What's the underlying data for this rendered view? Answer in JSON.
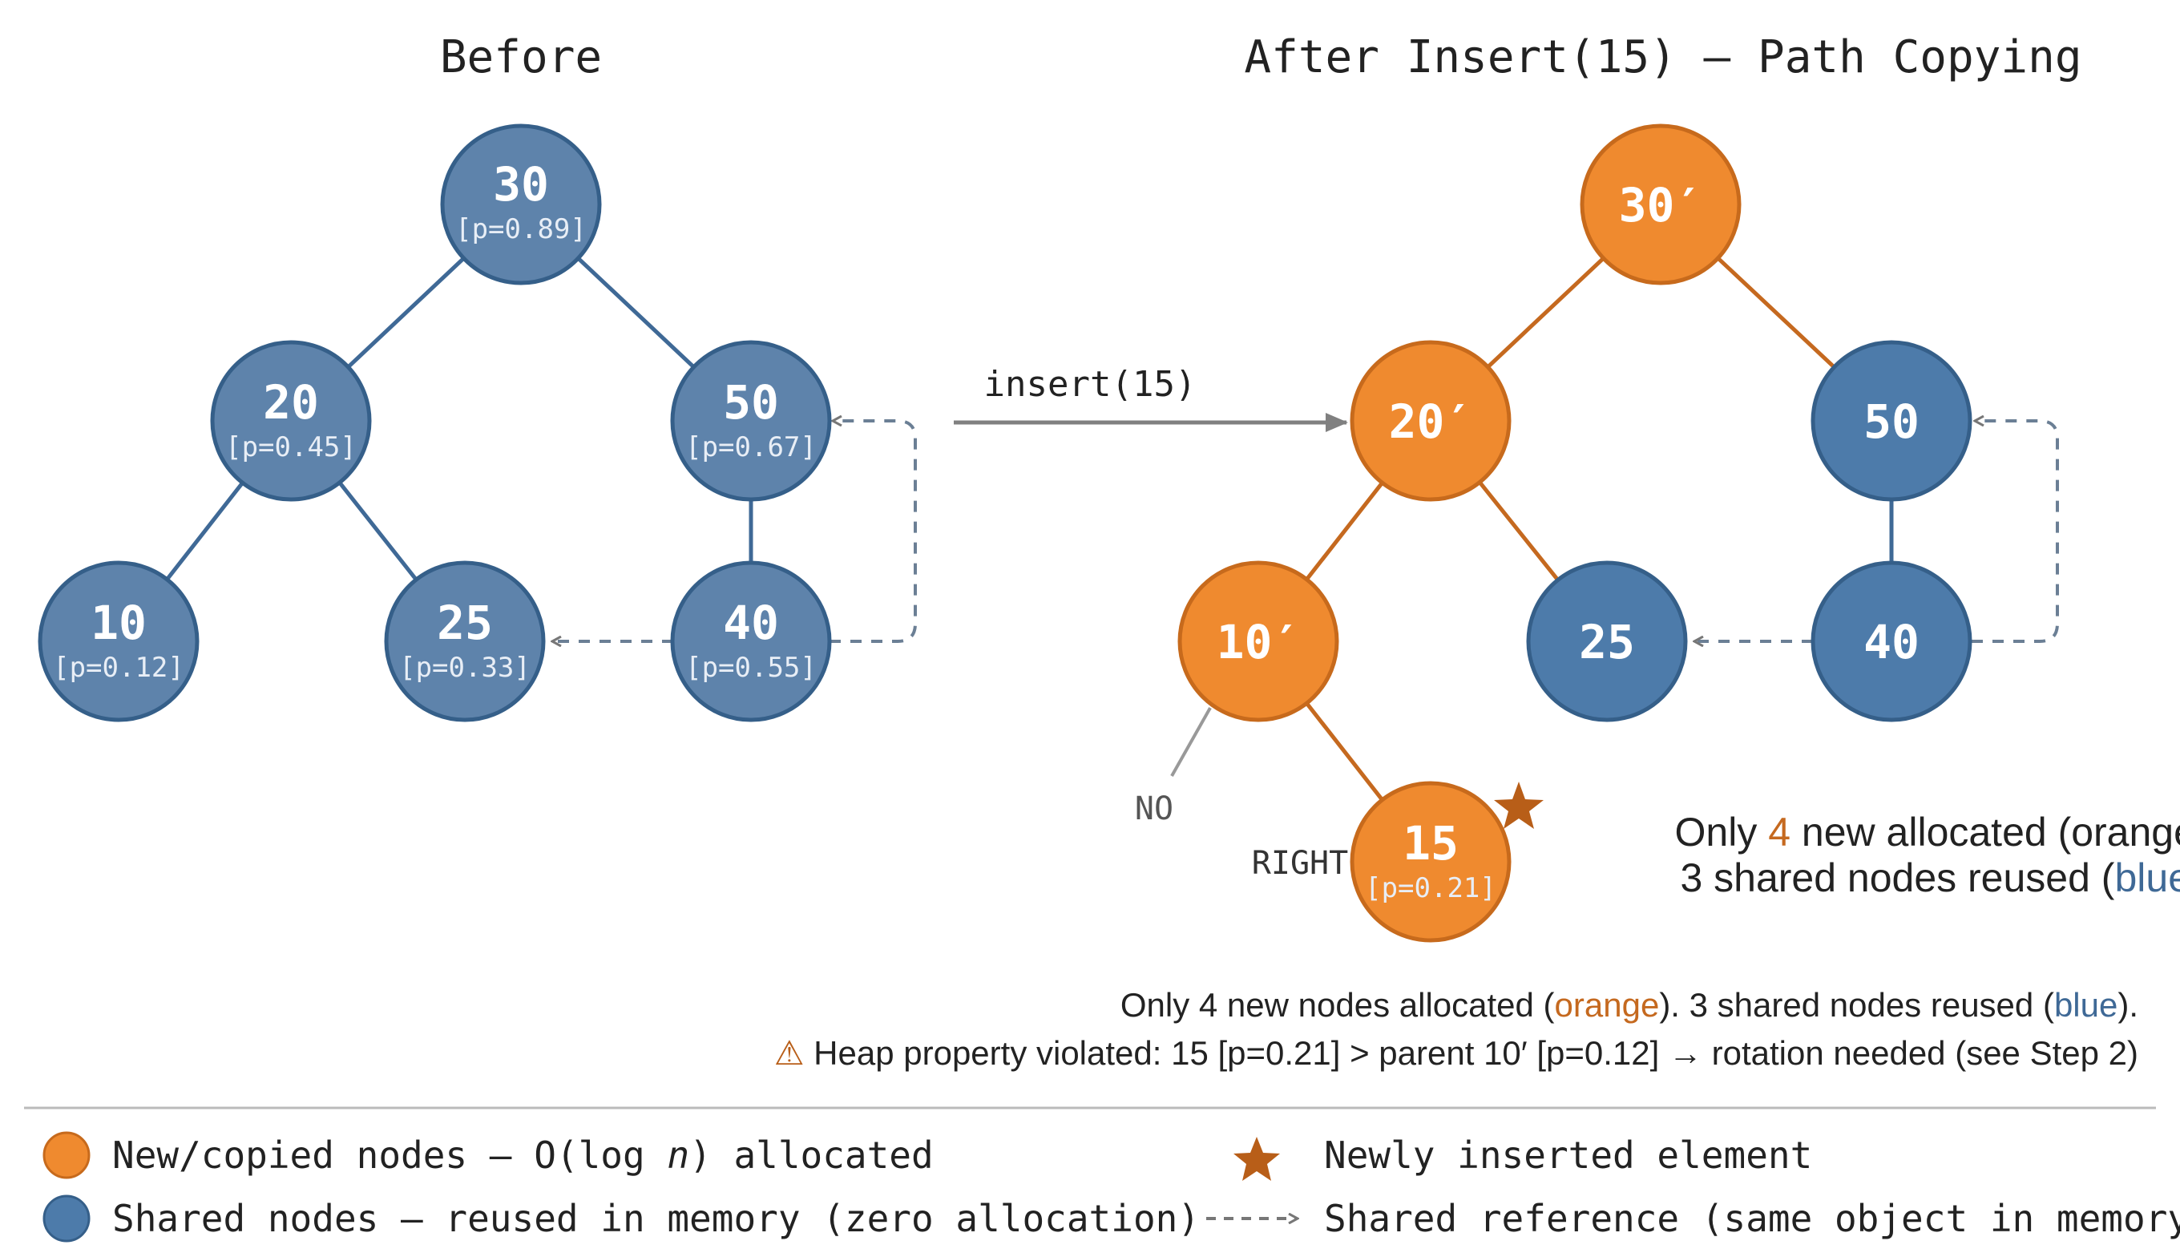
{
  "colors": {
    "orange": "#EF8A2F",
    "orange_stroke": "#C76A1C",
    "blue": "#4D7BAA",
    "blue_stroke": "#355F89",
    "blue_muted": "#5E83AB",
    "edge_orange": "#C5691F",
    "edge_blue": "#3F6996",
    "arrow_grey": "#888888",
    "star": "#B85E18",
    "warn": "#B85E18"
  },
  "before": {
    "title": "Before",
    "nodes": [
      {
        "id": "b30",
        "value": "30",
        "p": "[p=0.89]"
      },
      {
        "id": "b20",
        "value": "20",
        "p": "[p=0.45]"
      },
      {
        "id": "b50",
        "value": "50",
        "p": "[p=0.67]"
      },
      {
        "id": "b10",
        "value": "10",
        "p": "[p=0.12]"
      },
      {
        "id": "b25",
        "value": "25",
        "p": "[p=0.33]"
      },
      {
        "id": "b40",
        "value": "40",
        "p": "[p=0.55]"
      }
    ]
  },
  "operation": {
    "label": "insert(15)"
  },
  "after": {
    "title": "After Insert(15) — Path Copying",
    "nodes": [
      {
        "id": "a30",
        "value": "30′",
        "p": "",
        "kind": "new"
      },
      {
        "id": "a20",
        "value": "20′",
        "p": "",
        "kind": "new"
      },
      {
        "id": "a50",
        "value": "50",
        "p": "",
        "kind": "shared"
      },
      {
        "id": "a10",
        "value": "10′",
        "p": "",
        "kind": "new"
      },
      {
        "id": "a25",
        "value": "25",
        "p": "",
        "kind": "shared"
      },
      {
        "id": "a40",
        "value": "40",
        "p": "",
        "kind": "shared"
      },
      {
        "id": "a15",
        "value": "15",
        "p": "[p=0.21]",
        "kind": "new"
      }
    ],
    "edge_labels": {
      "no": "NO",
      "right": "RIGHT"
    },
    "side_note": {
      "line1_a": "Only ",
      "line1_num": "4",
      "line1_b": " new allocated (orange).",
      "line2_a": "3 shared nodes reused (",
      "line2_blue": "blue",
      "line2_b": ")."
    }
  },
  "notes": {
    "line1_a": "Only 4 new nodes allocated (",
    "line1_orange": "orange",
    "line1_b": "). 3 shared nodes reused (",
    "line1_blue": "blue",
    "line1_c": ").",
    "warning_icon": "⚠",
    "warning_text": " Heap property violated: 15 [p=0.21] > parent 10′ [p=0.12] → rotation needed (see Step 2)"
  },
  "legend": {
    "new_nodes_a": "New/copied nodes — O(log ",
    "new_nodes_n": "n",
    "new_nodes_b": ") allocated",
    "shared_nodes": "Shared nodes — reused in memory (zero allocation)",
    "star_label": "Newly inserted element",
    "dashed_label": "Shared reference (same object in memory)"
  }
}
